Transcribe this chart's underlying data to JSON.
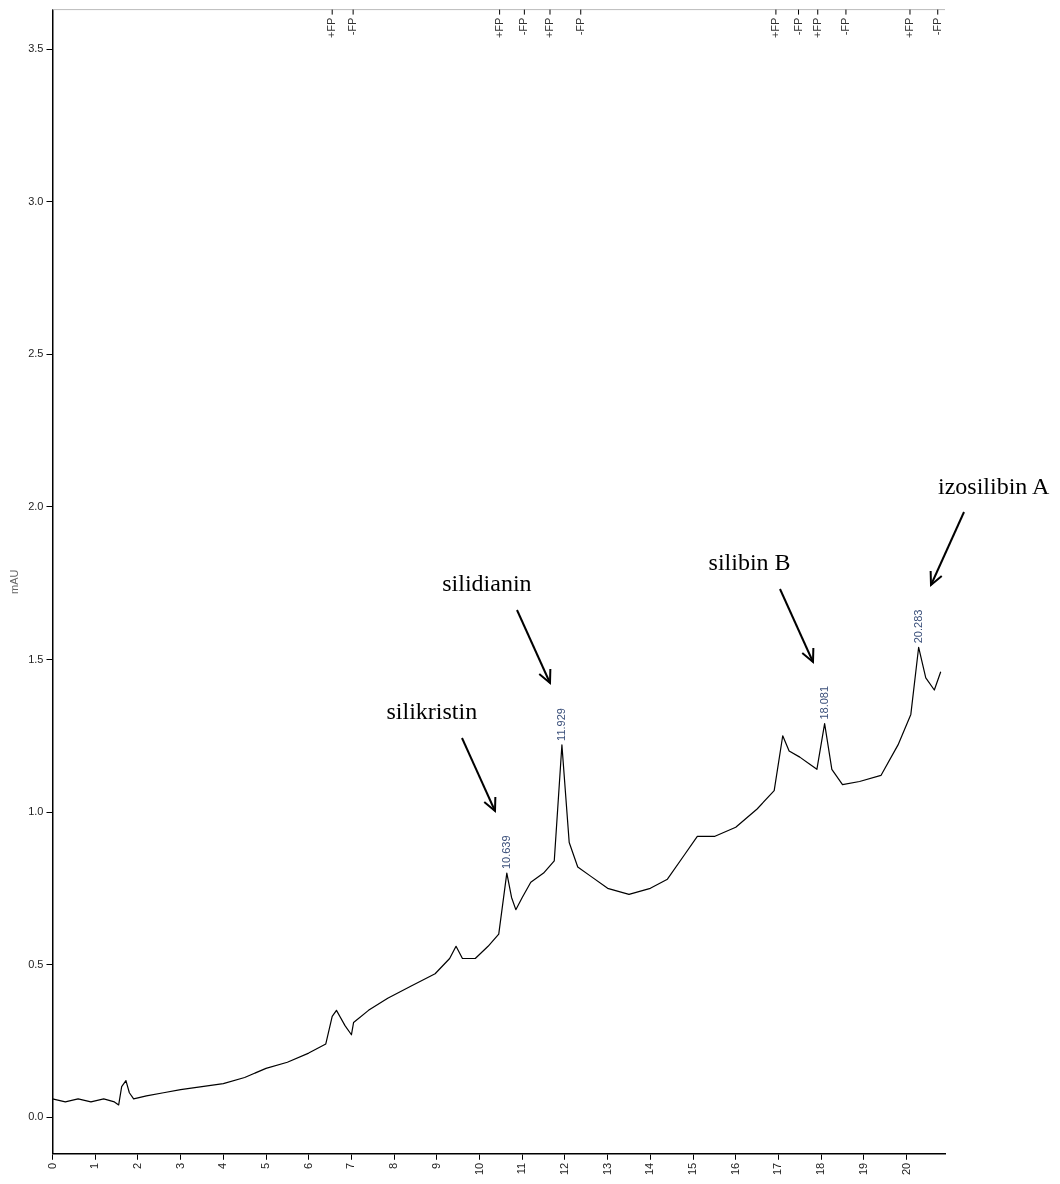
{
  "chart_data": {
    "type": "line",
    "ylabel": "mAU",
    "x": [
      0,
      0.3,
      0.6,
      0.9,
      1.2,
      1.45,
      1.55,
      1.62,
      1.72,
      1.8,
      1.9,
      2.2,
      2.6,
      3.0,
      3.5,
      4.0,
      4.5,
      5.0,
      5.5,
      6.0,
      6.4,
      6.55,
      6.65,
      6.85,
      7.0,
      7.05,
      7.4,
      7.85,
      8.4,
      8.96,
      9.3,
      9.45,
      9.6,
      9.9,
      10.2,
      10.45,
      10.639,
      10.75,
      10.85,
      11.0,
      11.2,
      11.5,
      11.75,
      11.929,
      12.1,
      12.3,
      12.6,
      13.0,
      13.5,
      14.0,
      14.4,
      14.8,
      15.1,
      15.5,
      16.0,
      16.5,
      16.9,
      17.1,
      17.25,
      17.5,
      17.9,
      18.081,
      18.25,
      18.5,
      18.9,
      19.4,
      19.8,
      20.1,
      20.283,
      20.45,
      20.65,
      20.8
    ],
    "series": [
      {
        "color": "#000000",
        "values": [
          0.06,
          0.05,
          0.06,
          0.05,
          0.06,
          0.05,
          0.04,
          0.1,
          0.12,
          0.08,
          0.06,
          0.07,
          0.08,
          0.09,
          0.1,
          0.11,
          0.13,
          0.16,
          0.18,
          0.21,
          0.24,
          0.33,
          0.35,
          0.3,
          0.27,
          0.31,
          0.35,
          0.39,
          0.43,
          0.47,
          0.52,
          0.56,
          0.52,
          0.52,
          0.56,
          0.6,
          0.8,
          0.72,
          0.68,
          0.72,
          0.77,
          0.8,
          0.84,
          1.22,
          0.9,
          0.82,
          0.79,
          0.75,
          0.73,
          0.75,
          0.78,
          0.86,
          0.92,
          0.92,
          0.95,
          1.01,
          1.07,
          1.25,
          1.2,
          1.18,
          1.14,
          1.29,
          1.14,
          1.09,
          1.1,
          1.12,
          1.22,
          1.32,
          1.54,
          1.44,
          1.4,
          1.46
        ]
      }
    ],
    "xlim": [
      0,
      20.9
    ],
    "xticks": [
      0,
      1,
      2,
      3,
      4,
      5,
      6,
      7,
      8,
      9,
      10,
      11,
      12,
      13,
      14,
      15,
      16,
      17,
      18,
      19,
      20
    ],
    "ylim": [
      -0.12,
      3.63
    ],
    "yticks": [
      {
        "value": 0,
        "label": "0.0"
      },
      0.5,
      {
        "value": 1,
        "label": "1.0"
      },
      1.5,
      {
        "value": 2,
        "label": "2.0"
      },
      2.5,
      {
        "value": 3,
        "label": "3.0"
      },
      3.5
    ],
    "ref_lines": [
      {
        "axis": "x",
        "value": 6.55,
        "label": "+FP"
      },
      {
        "axis": "x",
        "value": 7.04,
        "label": "-FP"
      },
      {
        "axis": "x",
        "value": 10.47,
        "label": "+FP"
      },
      {
        "axis": "x",
        "value": 11.05,
        "label": "-FP"
      },
      {
        "axis": "x",
        "value": 11.65,
        "label": "+FP"
      },
      {
        "axis": "x",
        "value": 12.37,
        "label": "-FP"
      },
      {
        "axis": "x",
        "value": 16.94,
        "label": "+FP"
      },
      {
        "axis": "x",
        "value": 17.47,
        "label": "-FP"
      },
      {
        "axis": "x",
        "value": 17.92,
        "label": "+FP"
      },
      {
        "axis": "x",
        "value": 18.58,
        "label": "-FP"
      },
      {
        "axis": "x",
        "value": 20.08,
        "label": "+FP"
      },
      {
        "axis": "x",
        "value": 20.73,
        "label": "-FP"
      }
    ],
    "annotations": [
      {
        "text": "10.639",
        "x": 10.639,
        "y": 0.8
      },
      {
        "text": "11.929",
        "x": 11.929,
        "y": 1.22
      },
      {
        "text": "18.081",
        "x": 18.081,
        "y": 1.29
      },
      {
        "text": "20.283",
        "x": 20.283,
        "y": 1.54
      },
      "silikristin",
      "silidianin",
      "silibin B",
      "izosilibin A"
    ]
  }
}
